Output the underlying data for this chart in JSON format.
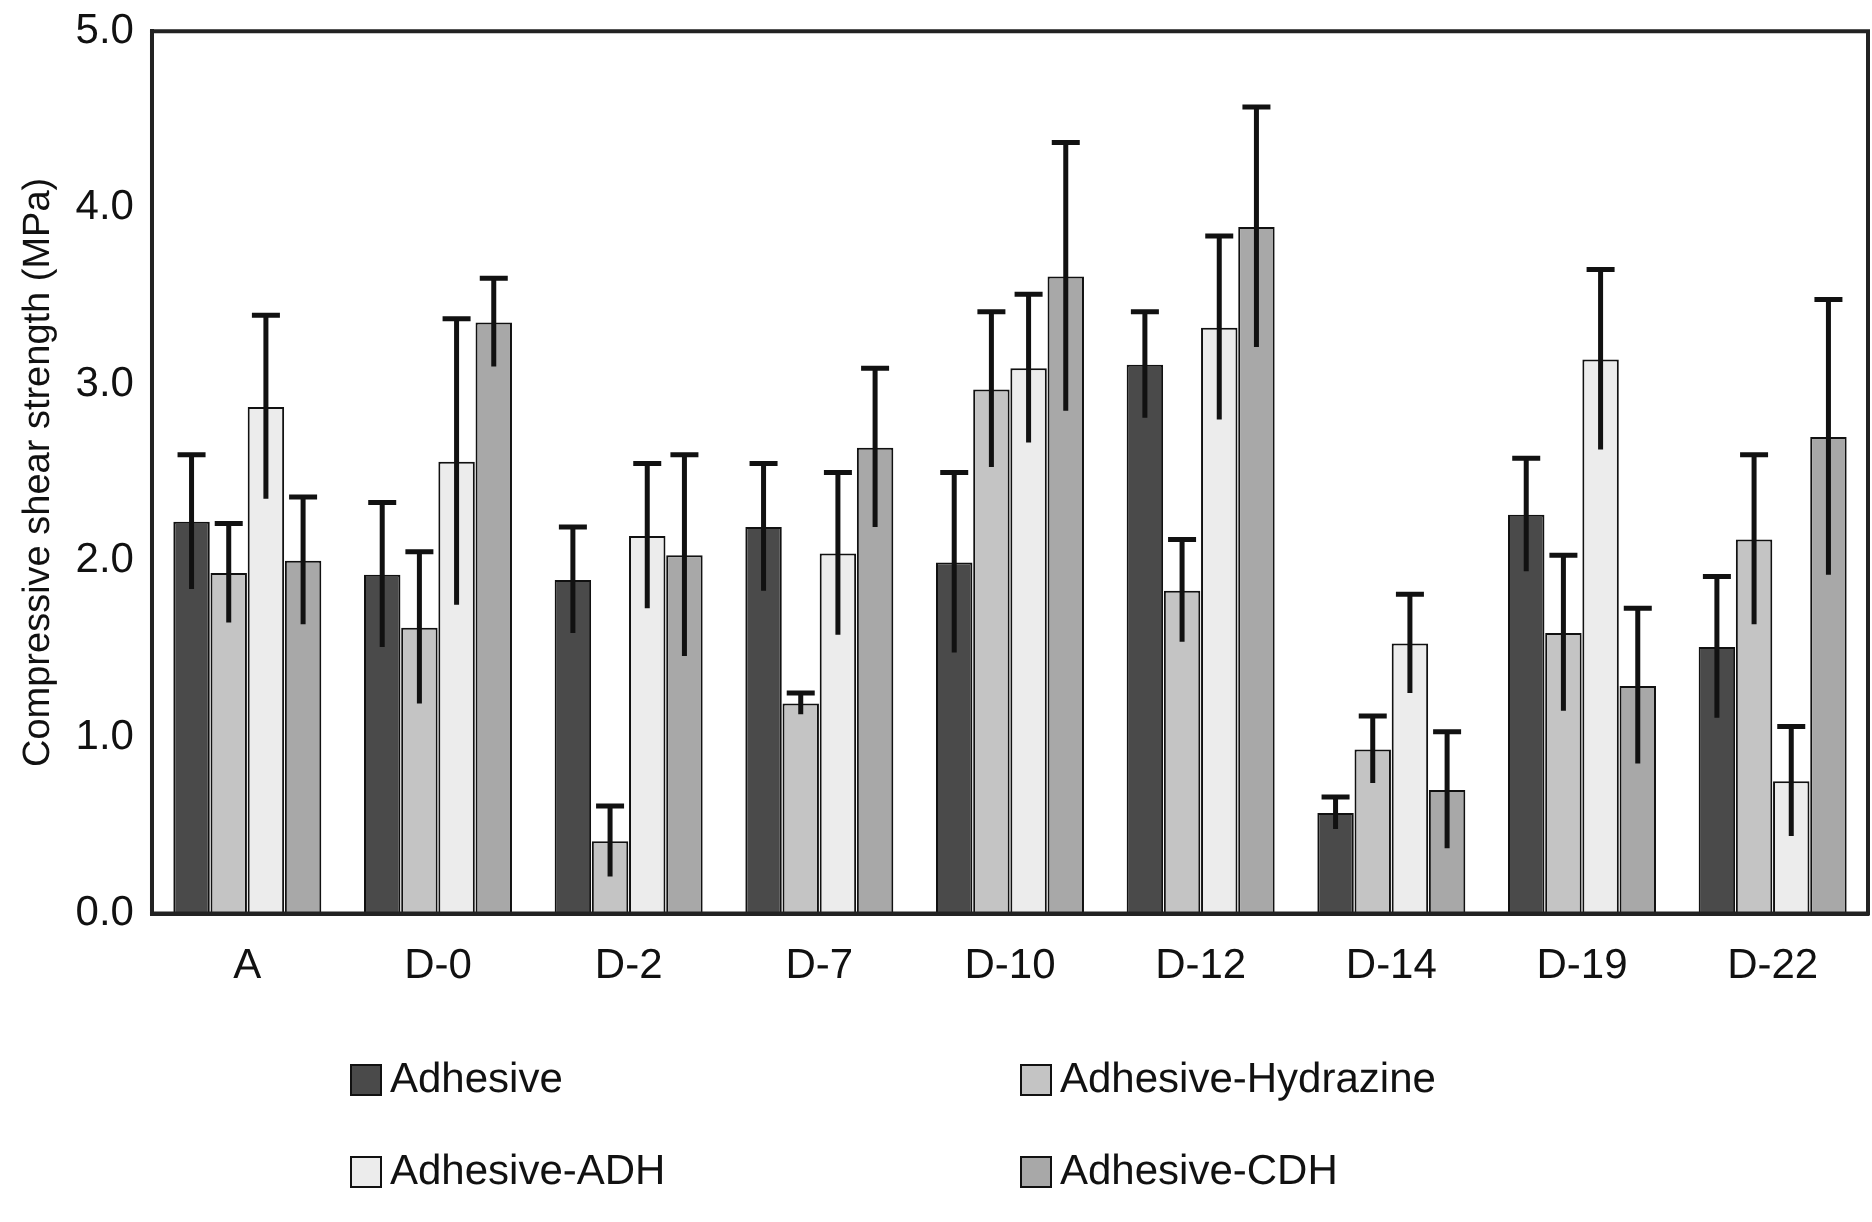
{
  "chart_data": {
    "type": "bar",
    "ylabel": "Compressive shear strength (MPa)",
    "categories": [
      "A",
      "D-0",
      "D-2",
      "D-7",
      "D-10",
      "D-12",
      "D-14",
      "D-19",
      "D-22"
    ],
    "series": [
      {
        "name": "Adhesive",
        "color": "#4a4a4a",
        "values": [
          2.22,
          1.92,
          1.89,
          2.19,
          1.99,
          3.11,
          0.57,
          2.26,
          1.51
        ],
        "errors": [
          0.38,
          0.41,
          0.3,
          0.36,
          0.51,
          0.3,
          0.09,
          0.32,
          0.4
        ]
      },
      {
        "name": "Adhesive-Hydrazine",
        "color": "#c4c4c4",
        "values": [
          1.93,
          1.62,
          0.41,
          1.19,
          2.97,
          1.83,
          0.93,
          1.59,
          2.12
        ],
        "errors": [
          0.28,
          0.43,
          0.2,
          0.06,
          0.44,
          0.29,
          0.19,
          0.44,
          0.48
        ]
      },
      {
        "name": "Adhesive-ADH",
        "color": "#ececec",
        "values": [
          2.87,
          2.56,
          2.14,
          2.04,
          3.09,
          3.32,
          1.53,
          3.14,
          0.75
        ],
        "errors": [
          0.52,
          0.81,
          0.41,
          0.46,
          0.42,
          0.52,
          0.28,
          0.51,
          0.31
        ]
      },
      {
        "name": "Adhesive-CDH",
        "color": "#a8a8a8",
        "values": [
          2.0,
          3.35,
          2.03,
          2.64,
          3.61,
          3.89,
          0.7,
          1.29,
          2.7
        ],
        "errors": [
          0.36,
          0.25,
          0.57,
          0.45,
          0.76,
          0.68,
          0.33,
          0.44,
          0.78
        ]
      }
    ],
    "ylim": [
      0,
      5
    ],
    "yticks": [
      {
        "value": 0,
        "label": "0.0"
      },
      {
        "value": 1,
        "label": "1.0"
      },
      {
        "value": 2,
        "label": "2.0"
      },
      {
        "value": 3,
        "label": "3.0"
      },
      {
        "value": 4,
        "label": "4.0"
      },
      {
        "value": 5,
        "label": "5.0"
      }
    ],
    "legend": "bottom"
  }
}
